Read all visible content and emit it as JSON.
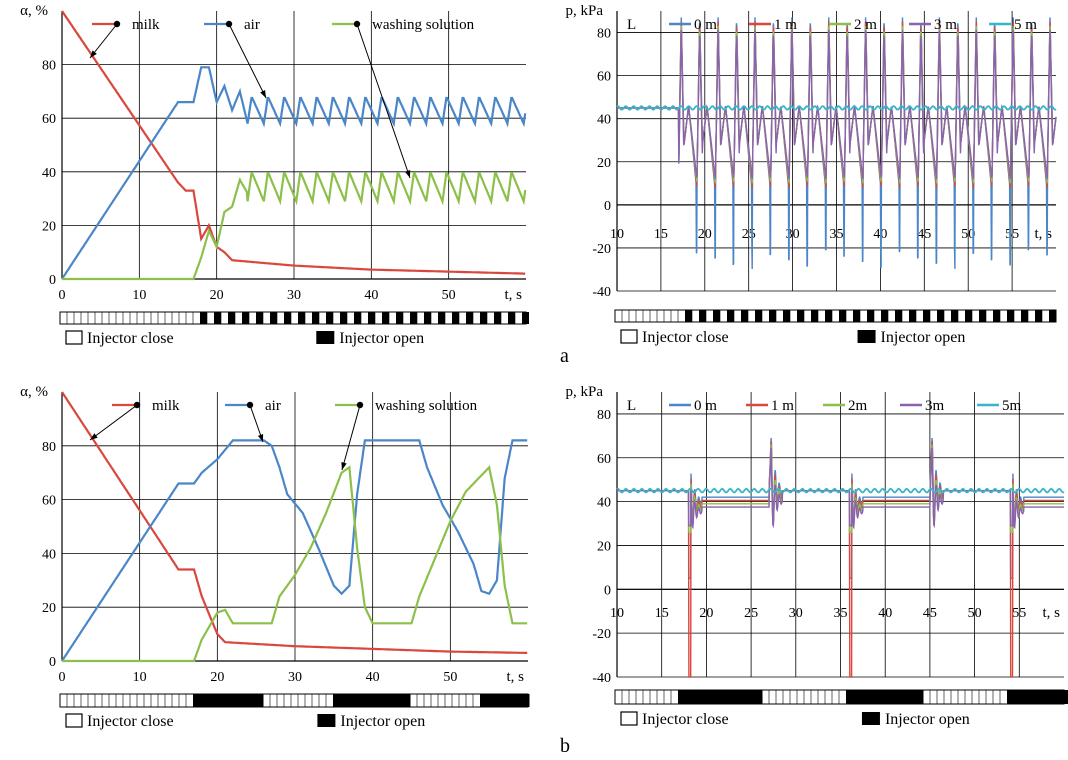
{
  "captions": [
    "a",
    "b"
  ],
  "injector_legend": {
    "close": "Injector close",
    "open": "Injector open"
  },
  "colors": {
    "milk": "#d9473f",
    "air": "#4a86c8",
    "washing": "#8cc04a",
    "p0": "#4a86c8",
    "p1": "#d9473f",
    "p2": "#8cc04a",
    "p3": "#8a62b0",
    "p5": "#39b4c8"
  },
  "chart_data": [
    {
      "id": "a-left",
      "type": "line",
      "ylabel": "α, %",
      "xlabel": "t, s",
      "xlim": [
        0,
        60
      ],
      "ylim": [
        0,
        100
      ],
      "xticks": [
        0,
        10,
        20,
        30,
        40,
        50
      ],
      "yticks": [
        0,
        20,
        40,
        60,
        80
      ],
      "grid": true,
      "legend_position": "top",
      "series": [
        {
          "name": "milk",
          "color": "#d9473f",
          "points": [
            [
              0,
              100
            ],
            [
              15,
              36
            ],
            [
              16,
              33
            ],
            [
              17,
              33
            ],
            [
              18,
              15
            ],
            [
              19,
              20
            ],
            [
              20,
              12
            ],
            [
              21,
              10
            ],
            [
              22,
              7
            ],
            [
              30,
              5
            ],
            [
              40,
              3.5
            ],
            [
              60,
              2
            ]
          ]
        },
        {
          "name": "air",
          "color": "#4a86c8",
          "points": [
            [
              0,
              0
            ],
            [
              15,
              66
            ],
            [
              17,
              66
            ],
            [
              18,
              79
            ],
            [
              19,
              79
            ],
            [
              20,
              66
            ],
            [
              21,
              72
            ],
            [
              22,
              63
            ],
            [
              23,
              70
            ],
            [
              24,
              58
            ],
            [
              25,
              68
            ],
            [
              60,
              66
            ]
          ],
          "oscillate": {
            "from": 24,
            "min": 58,
            "max": 68,
            "period": 2.1
          }
        },
        {
          "name": "washing solution",
          "color": "#8cc04a",
          "points": [
            [
              0,
              0
            ],
            [
              17,
              0
            ],
            [
              18,
              8
            ],
            [
              19,
              18
            ],
            [
              20,
              12
            ],
            [
              21,
              25
            ],
            [
              22,
              27
            ],
            [
              23,
              37
            ],
            [
              24,
              32
            ],
            [
              60,
              32
            ]
          ],
          "oscillate": {
            "from": 24,
            "min": 29,
            "max": 40,
            "period": 2.1
          }
        }
      ],
      "injector": {
        "label_close": "Injector close",
        "label_open": "Injector open",
        "pattern": "a"
      }
    },
    {
      "id": "a-right",
      "type": "line",
      "ylabel": "p, kPa",
      "xlabel": "t, s",
      "legend_title": "L",
      "xlim": [
        10,
        60
      ],
      "ylim": [
        -40,
        90
      ],
      "xticks": [
        10,
        15,
        20,
        25,
        30,
        35,
        40,
        45,
        50,
        55
      ],
      "yticks": [
        -40,
        -20,
        0,
        20,
        40,
        60,
        80
      ],
      "grid": true,
      "legend_position": "top",
      "series": [
        {
          "name": "0 m",
          "color": "#4a86c8"
        },
        {
          "name": "1 m",
          "color": "#d9473f"
        },
        {
          "name": "2 m",
          "color": "#8cc04a"
        },
        {
          "name": "3 m",
          "color": "#8a62b0"
        },
        {
          "name": "5 m",
          "color": "#39b4c8"
        }
      ],
      "baseline": 45,
      "pulse_start": 17,
      "pulse_period": 2.1,
      "pulse_max": 88,
      "pulse_min": 0,
      "spike_min": -30,
      "injector": {
        "label_close": "Injector close",
        "label_open": "Injector open",
        "pattern": "a"
      }
    },
    {
      "id": "b-left",
      "type": "line",
      "ylabel": "α, %",
      "xlabel": "t, s",
      "xlim": [
        0,
        60
      ],
      "ylim": [
        0,
        100
      ],
      "xticks": [
        0,
        10,
        20,
        30,
        40,
        50
      ],
      "yticks": [
        0,
        20,
        40,
        60,
        80
      ],
      "grid": true,
      "legend_position": "top",
      "series": [
        {
          "name": "milk",
          "color": "#d9473f",
          "points": [
            [
              0,
              100
            ],
            [
              15,
              34
            ],
            [
              17,
              34
            ],
            [
              18,
              24
            ],
            [
              20,
              10
            ],
            [
              21,
              7
            ],
            [
              30,
              5.5
            ],
            [
              40,
              4.5
            ],
            [
              50,
              3.5
            ],
            [
              60,
              3
            ]
          ]
        },
        {
          "name": "air",
          "color": "#4a86c8",
          "points": [
            [
              0,
              0
            ],
            [
              15,
              66
            ],
            [
              17,
              66
            ],
            [
              18,
              70
            ],
            [
              20,
              75
            ],
            [
              22,
              82
            ],
            [
              26,
              82
            ],
            [
              27,
              80
            ],
            [
              28,
              72
            ],
            [
              29,
              62
            ],
            [
              31,
              55
            ],
            [
              33,
              42
            ],
            [
              35,
              28
            ],
            [
              36,
              25
            ],
            [
              37,
              28
            ],
            [
              38,
              62
            ],
            [
              39,
              82
            ],
            [
              46,
              82
            ],
            [
              47,
              72
            ],
            [
              49,
              58
            ],
            [
              51,
              48
            ],
            [
              53,
              36
            ],
            [
              54,
              26
            ],
            [
              55,
              25
            ],
            [
              56,
              30
            ],
            [
              57,
              68
            ],
            [
              58,
              82
            ],
            [
              60,
              82
            ]
          ]
        },
        {
          "name": "washing solution",
          "color": "#8cc04a",
          "points": [
            [
              0,
              0
            ],
            [
              17,
              0
            ],
            [
              18,
              8
            ],
            [
              20,
              18
            ],
            [
              21,
              19
            ],
            [
              22,
              14
            ],
            [
              27,
              14
            ],
            [
              28,
              24
            ],
            [
              30,
              32
            ],
            [
              32,
              42
            ],
            [
              34,
              55
            ],
            [
              36,
              70
            ],
            [
              37,
              72
            ],
            [
              38,
              42
            ],
            [
              39,
              20
            ],
            [
              40,
              14
            ],
            [
              45,
              14
            ],
            [
              46,
              24
            ],
            [
              48,
              38
            ],
            [
              50,
              52
            ],
            [
              52,
              63
            ],
            [
              55,
              72
            ],
            [
              56,
              58
            ],
            [
              57,
              28
            ],
            [
              58,
              14
            ],
            [
              60,
              14
            ]
          ]
        }
      ],
      "injector": {
        "label_close": "Injector close",
        "label_open": "Injector open",
        "pattern": "b"
      }
    },
    {
      "id": "b-right",
      "type": "line",
      "ylabel": "p, kPa",
      "xlabel": "t, s",
      "legend_title": "L",
      "xlim": [
        10,
        60
      ],
      "ylim": [
        -40,
        90
      ],
      "xticks": [
        10,
        15,
        20,
        25,
        30,
        35,
        40,
        45,
        50,
        55
      ],
      "yticks": [
        -40,
        -20,
        0,
        20,
        40,
        60,
        80
      ],
      "grid": true,
      "legend_position": "top",
      "series": [
        {
          "name": "0 m",
          "color": "#4a86c8"
        },
        {
          "name": "1 m",
          "color": "#d9473f"
        },
        {
          "name": "2m",
          "color": "#8cc04a"
        },
        {
          "name": "3m",
          "color": "#8a62b0"
        },
        {
          "name": "5m",
          "color": "#39b4c8"
        }
      ],
      "baseline": 45,
      "events": [
        18,
        27,
        36,
        45,
        54
      ],
      "injector": {
        "label_close": "Injector close",
        "label_open": "Injector open",
        "pattern": "b"
      }
    }
  ]
}
